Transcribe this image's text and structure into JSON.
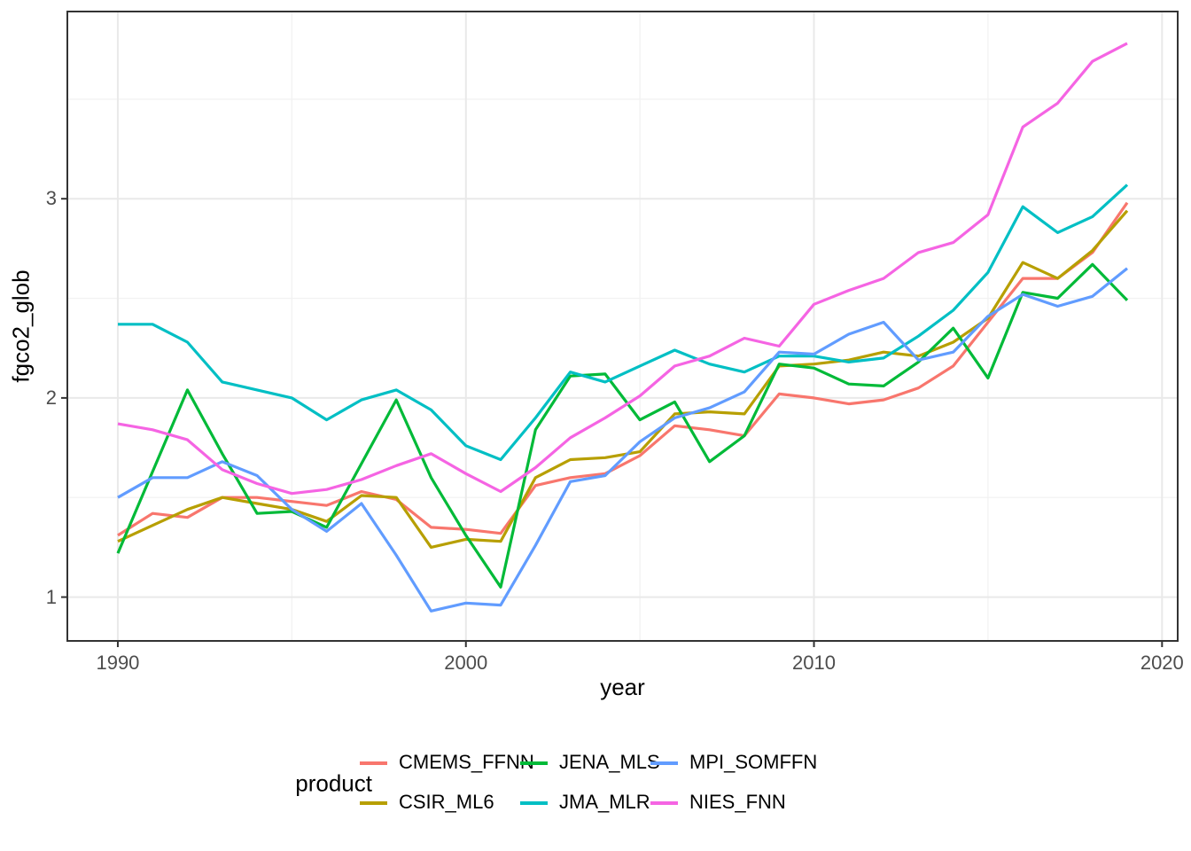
{
  "chart_data": {
    "type": "line",
    "title": "",
    "xlabel": "year",
    "ylabel": "fgco2_glob",
    "grid": "on",
    "legend_position": "bottom",
    "legend_title": "product",
    "xlim": [
      1988.55,
      2020.45
    ],
    "ylim": [
      0.78,
      3.94
    ],
    "x_ticks": [
      1990,
      2000,
      2010,
      2020
    ],
    "x_minor_ticks": [
      1995,
      2005,
      2015
    ],
    "y_ticks": [
      1,
      2,
      3
    ],
    "y_minor_ticks": [
      1.5,
      2.5,
      3.5
    ],
    "x": [
      1990,
      1991,
      1992,
      1993,
      1994,
      1995,
      1996,
      1997,
      1998,
      1999,
      2000,
      2001,
      2002,
      2003,
      2004,
      2005,
      2006,
      2007,
      2008,
      2009,
      2010,
      2011,
      2012,
      2013,
      2014,
      2015,
      2016,
      2017,
      2018,
      2019
    ],
    "series": [
      {
        "name": "CMEMS_FFNN",
        "color": "#F8766D",
        "values": [
          1.31,
          1.42,
          1.4,
          1.5,
          1.5,
          1.48,
          1.46,
          1.53,
          1.49,
          1.35,
          1.34,
          1.32,
          1.56,
          1.6,
          1.62,
          1.71,
          1.86,
          1.84,
          1.81,
          2.02,
          2.0,
          1.97,
          1.99,
          2.05,
          2.16,
          2.38,
          2.6,
          2.6,
          2.73,
          2.98
        ]
      },
      {
        "name": "CSIR_ML6",
        "color": "#B79F00",
        "values": [
          1.28,
          1.36,
          1.44,
          1.5,
          1.47,
          1.44,
          1.38,
          1.51,
          1.5,
          1.25,
          1.29,
          1.28,
          1.6,
          1.69,
          1.7,
          1.73,
          1.92,
          1.93,
          1.92,
          2.16,
          2.17,
          2.19,
          2.23,
          2.21,
          2.28,
          2.4,
          2.68,
          2.6,
          2.74,
          2.94
        ]
      },
      {
        "name": "JENA_MLS",
        "color": "#00BA38",
        "values": [
          1.22,
          1.63,
          2.04,
          1.72,
          1.42,
          1.43,
          1.35,
          1.67,
          1.99,
          1.6,
          1.31,
          1.05,
          1.84,
          2.11,
          2.12,
          1.89,
          1.98,
          1.68,
          1.81,
          2.17,
          2.15,
          2.07,
          2.06,
          2.18,
          2.35,
          2.1,
          2.53,
          2.5,
          2.67,
          2.49
        ]
      },
      {
        "name": "JMA_MLR",
        "color": "#00BFC4",
        "values": [
          2.37,
          2.37,
          2.28,
          2.08,
          2.04,
          2.0,
          1.89,
          1.99,
          2.04,
          1.94,
          1.76,
          1.69,
          1.9,
          2.13,
          2.08,
          2.16,
          2.24,
          2.17,
          2.13,
          2.21,
          2.21,
          2.18,
          2.2,
          2.31,
          2.44,
          2.63,
          2.96,
          2.83,
          2.91,
          3.07
        ]
      },
      {
        "name": "MPI_SOMFFN",
        "color": "#619CFF",
        "values": [
          1.5,
          1.6,
          1.6,
          1.68,
          1.61,
          1.44,
          1.33,
          1.47,
          1.21,
          0.93,
          0.97,
          0.96,
          1.26,
          1.58,
          1.61,
          1.78,
          1.9,
          1.95,
          2.03,
          2.23,
          2.22,
          2.32,
          2.38,
          2.19,
          2.23,
          2.41,
          2.52,
          2.46,
          2.51,
          2.65
        ]
      },
      {
        "name": "NIES_FNN",
        "color": "#F564E3",
        "values": [
          1.87,
          1.84,
          1.79,
          1.64,
          1.57,
          1.52,
          1.54,
          1.59,
          1.66,
          1.72,
          1.62,
          1.53,
          1.65,
          1.8,
          1.9,
          2.01,
          2.16,
          2.21,
          2.3,
          2.26,
          2.47,
          2.54,
          2.6,
          2.73,
          2.78,
          2.92,
          3.36,
          3.48,
          3.69,
          3.78
        ]
      }
    ]
  },
  "panel": {
    "background": "#ffffff",
    "border_color": "#333333",
    "grid_major_color": "#e9e9e9",
    "grid_minor_color": "#f2f2f2",
    "tick_color": "#333333",
    "tick_label_color": "#4d4d4d",
    "title_color": "#000000"
  }
}
